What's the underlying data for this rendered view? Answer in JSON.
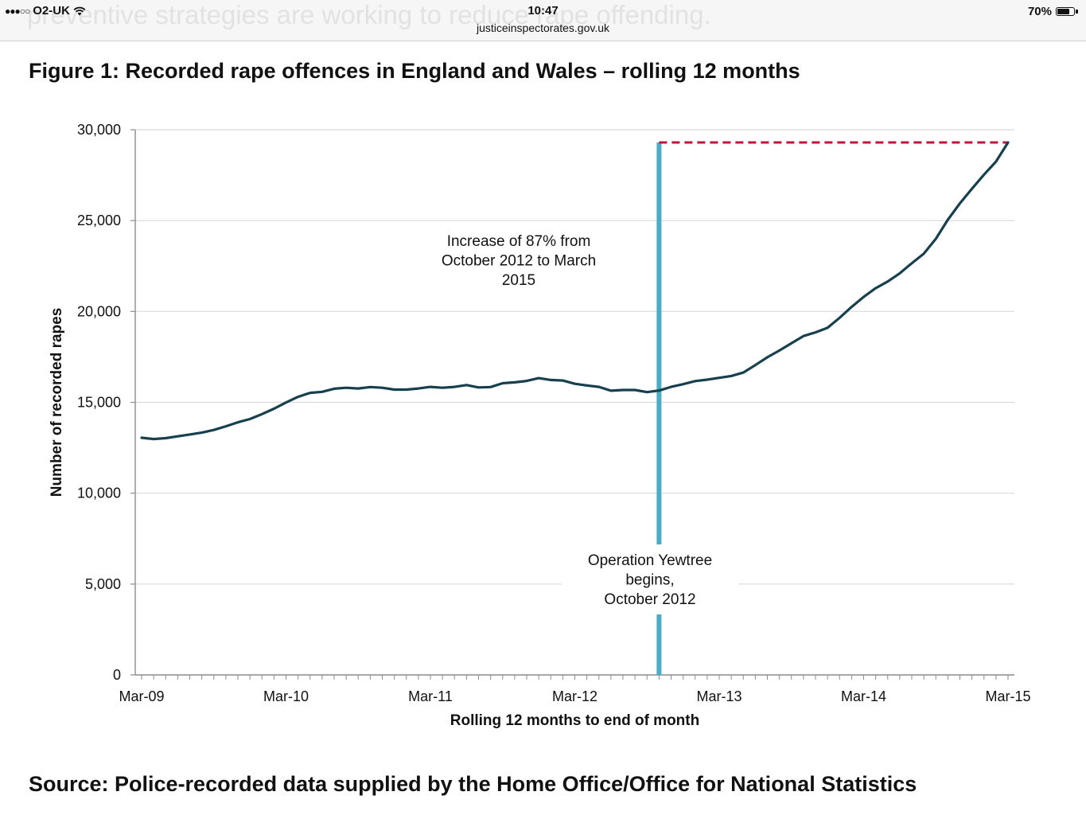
{
  "status_bar": {
    "signal": "●●●○○",
    "carrier": "O2-UK",
    "time": "10:47",
    "url": "justiceinspectorates.gov.uk",
    "battery": "70%",
    "battery_level": 0.7,
    "background_text": "preventive strategies are working to reduce rape offending."
  },
  "figure_title": "Figure 1: Recorded rape offences in England and Wales – rolling 12 months",
  "source_text": "Source: Police-recorded data supplied by the Home Office/Office for National Statistics",
  "chart_data": {
    "type": "line",
    "title": "Figure 1: Recorded rape offences in England and Wales – rolling 12 months",
    "xlabel": "Rolling 12 months to end of month",
    "ylabel": "Number of recorded rapes",
    "ylim": [
      0,
      30000
    ],
    "yticks": [
      0,
      5000,
      10000,
      15000,
      20000,
      25000,
      30000
    ],
    "ytick_labels": [
      "0",
      "5,000",
      "10,000",
      "15,000",
      "20,000",
      "25,000",
      "30,000"
    ],
    "xtick_labels": [
      "Mar-09",
      "Mar-10",
      "Mar-11",
      "Mar-12",
      "Mar-13",
      "Mar-14",
      "Mar-15"
    ],
    "x_start": "Mar-09",
    "x_end": "Mar-15",
    "grid": "horizontal",
    "legend": "none",
    "series": [
      {
        "color": "#17404f",
        "x": [
          "Mar-09",
          "Apr-09",
          "May-09",
          "Jun-09",
          "Jul-09",
          "Aug-09",
          "Sep-09",
          "Oct-09",
          "Nov-09",
          "Dec-09",
          "Jan-10",
          "Feb-10",
          "Mar-10",
          "Apr-10",
          "May-10",
          "Jun-10",
          "Jul-10",
          "Aug-10",
          "Sep-10",
          "Oct-10",
          "Nov-10",
          "Dec-10",
          "Jan-11",
          "Feb-11",
          "Mar-11",
          "Apr-11",
          "May-11",
          "Jun-11",
          "Jul-11",
          "Aug-11",
          "Sep-11",
          "Oct-11",
          "Nov-11",
          "Dec-11",
          "Jan-12",
          "Feb-12",
          "Mar-12",
          "Apr-12",
          "May-12",
          "Jun-12",
          "Jul-12",
          "Aug-12",
          "Sep-12",
          "Oct-12",
          "Nov-12",
          "Dec-12",
          "Jan-13",
          "Feb-13",
          "Mar-13",
          "Apr-13",
          "May-13",
          "Jun-13",
          "Jul-13",
          "Aug-13",
          "Sep-13",
          "Oct-13",
          "Nov-13",
          "Dec-13",
          "Jan-14",
          "Feb-14",
          "Mar-14",
          "Apr-14",
          "May-14",
          "Jun-14",
          "Jul-14",
          "Aug-14",
          "Sep-14",
          "Oct-14",
          "Nov-14",
          "Dec-14",
          "Jan-15",
          "Feb-15",
          "Mar-15"
        ],
        "values": [
          13050,
          12980,
          13030,
          13130,
          13230,
          13330,
          13480,
          13680,
          13900,
          14080,
          14350,
          14650,
          14990,
          15300,
          15520,
          15580,
          15750,
          15800,
          15760,
          15840,
          15800,
          15700,
          15700,
          15760,
          15850,
          15800,
          15850,
          15950,
          15820,
          15840,
          16050,
          16100,
          16180,
          16330,
          16230,
          16200,
          16020,
          15930,
          15850,
          15640,
          15680,
          15680,
          15560,
          15650,
          15850,
          16000,
          16170,
          16250,
          16350,
          16450,
          16640,
          17050,
          17480,
          17850,
          18250,
          18650,
          18850,
          19100,
          19650,
          20250,
          20800,
          21280,
          21650,
          22100,
          22650,
          23180,
          24000,
          25050,
          25950,
          26750,
          27530,
          28250,
          29300
        ]
      }
    ],
    "annotations": {
      "increase_text": [
        "Increase of 87% from",
        "October 2012 to March",
        "2015"
      ],
      "event_text": [
        "Operation Yewtree",
        "begins,",
        "October 2012"
      ],
      "event_x": "Oct-12",
      "event_y": 29300,
      "reference_y": 29300,
      "event_color": "#4bacc6",
      "reference_color": "#c0143c"
    }
  }
}
